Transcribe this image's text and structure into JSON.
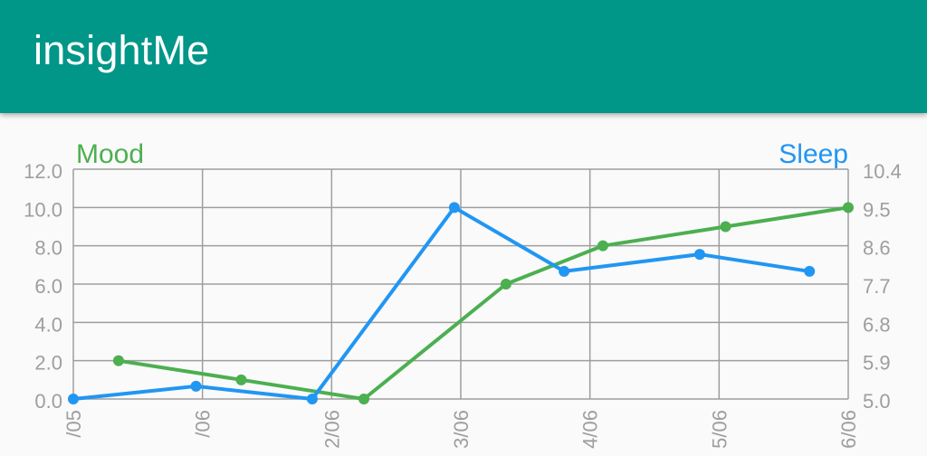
{
  "app": {
    "title": "insightMe"
  },
  "colors": {
    "app_bar": "#009688",
    "mood_series": "#4CAF50",
    "sleep_series": "#2196F3",
    "grid": "#9e9e9e",
    "axis_text": "#9e9e9e"
  },
  "chart_data": {
    "type": "line",
    "x_tick_labels": [
      "/05",
      "/06",
      "2/06",
      "3/06",
      "4/06",
      "5/06",
      "6/06"
    ],
    "series": [
      {
        "name": "Mood",
        "axis": "left",
        "color": "#4CAF50",
        "x": [
          0.35,
          1.3,
          2.25,
          3.35,
          4.1,
          5.05,
          6.0
        ],
        "values": [
          2.0,
          1.0,
          0.0,
          6.0,
          8.0,
          9.0,
          10.0
        ]
      },
      {
        "name": "Sleep",
        "axis": "right",
        "color": "#2196F3",
        "x": [
          0.0,
          0.95,
          1.85,
          2.95,
          3.8,
          4.85,
          5.7
        ],
        "values": [
          5.0,
          5.3,
          5.0,
          9.5,
          8.0,
          8.4,
          8.0
        ]
      }
    ],
    "left_axis": {
      "label": "Mood",
      "ticks": [
        "0.0",
        "2.0",
        "4.0",
        "6.0",
        "8.0",
        "10.0",
        "12.0"
      ],
      "ylim": [
        0,
        12
      ]
    },
    "right_axis": {
      "label": "Sleep",
      "ticks": [
        "5.0",
        "5.9",
        "6.8",
        "7.7",
        "8.6",
        "9.5",
        "10.4"
      ],
      "ylim": [
        5.0,
        10.4
      ]
    },
    "x_range": [
      0,
      6
    ],
    "grid": true
  }
}
